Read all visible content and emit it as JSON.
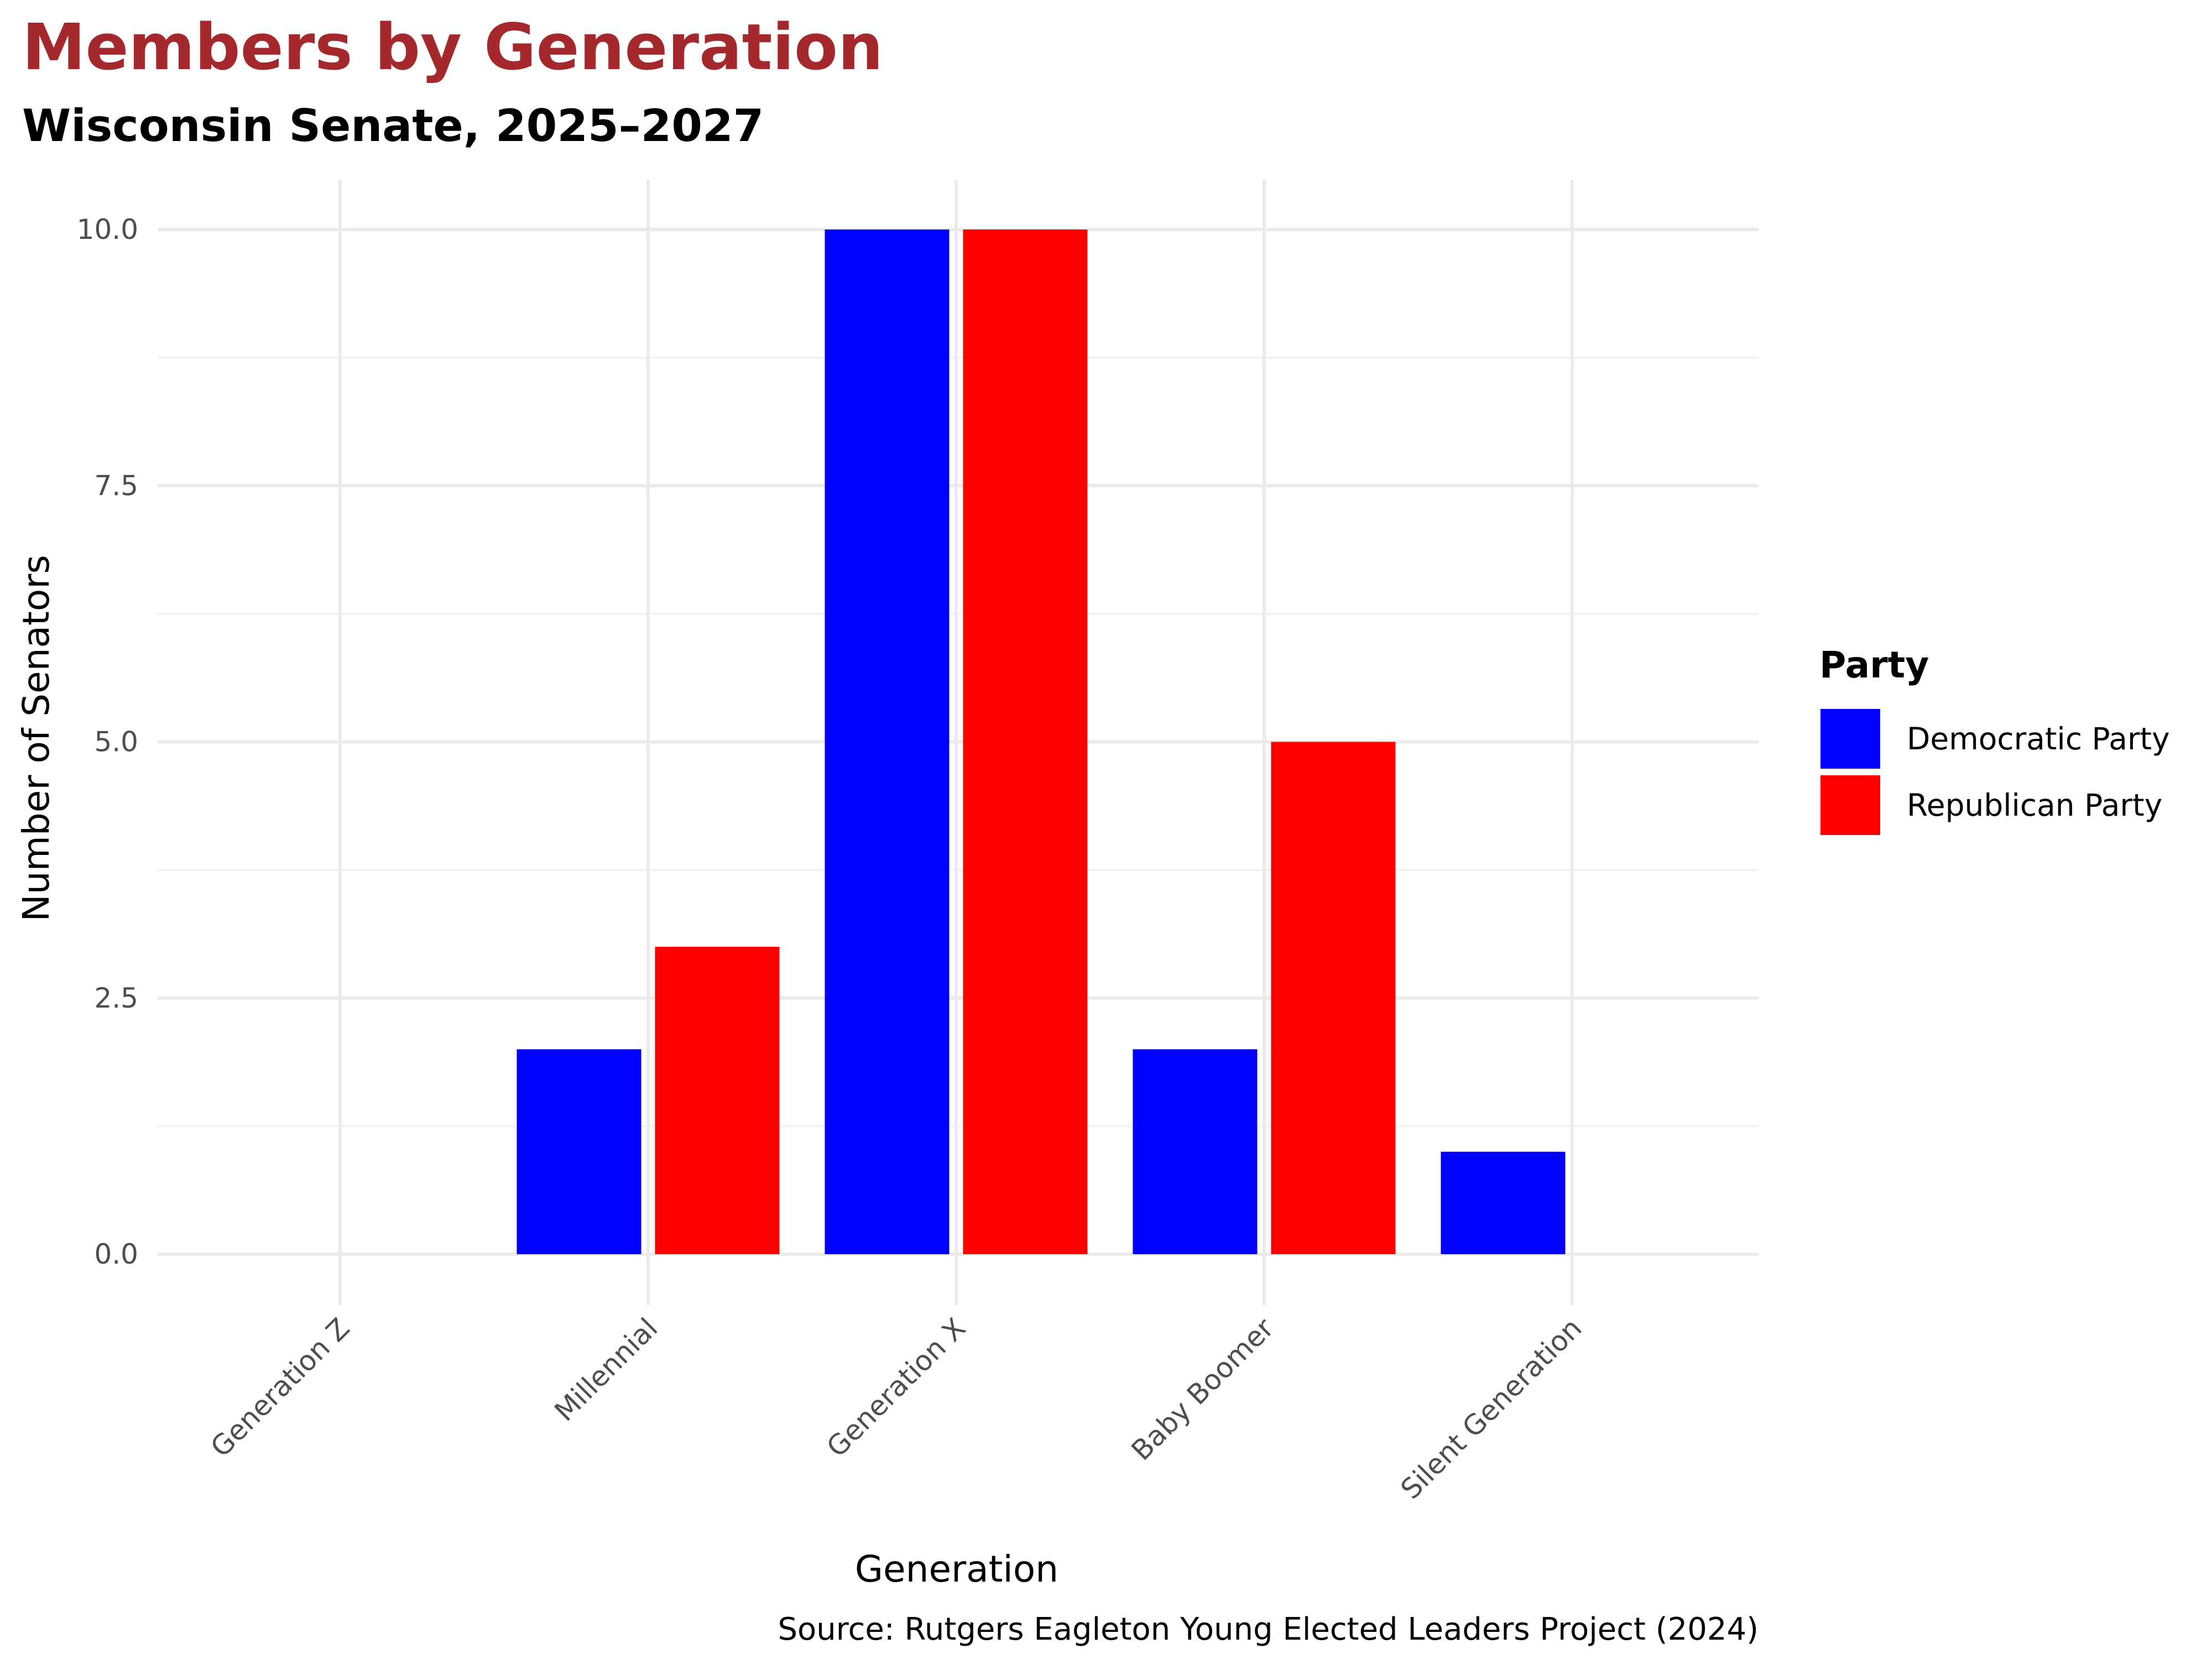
{
  "chart_data": {
    "type": "bar",
    "title": "Members by Generation",
    "subtitle": "Wisconsin Senate, 2025–2027",
    "xlabel": "Generation",
    "ylabel": "Number of Senators",
    "caption": "Source: Rutgers Eagleton Young Elected Leaders Project (2024)",
    "categories": [
      "Generation Z",
      "Millennial",
      "Generation X",
      "Baby Boomer",
      "Silent Generation"
    ],
    "series": [
      {
        "name": "Democratic Party",
        "color": "#0000ff",
        "values": [
          0,
          2,
          10,
          2,
          1
        ]
      },
      {
        "name": "Republican Party",
        "color": "#ff0000",
        "values": [
          0,
          3,
          10,
          5,
          0
        ]
      }
    ],
    "ylim": [
      0,
      10
    ],
    "yticks": [
      "0.0",
      "2.5",
      "5.0",
      "7.5",
      "10.0"
    ],
    "legend": {
      "title": "Party",
      "position": "right"
    },
    "grid": true
  }
}
